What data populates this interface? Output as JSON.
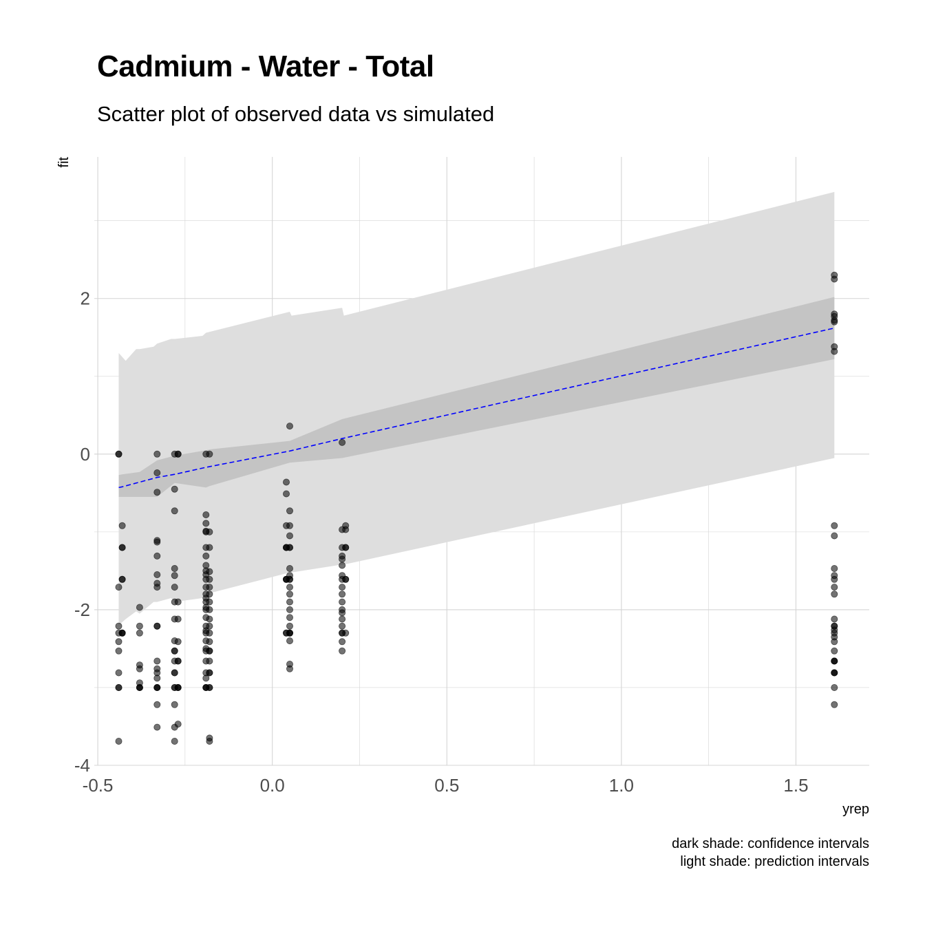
{
  "chart_data": {
    "type": "scatter",
    "title": "Cadmium - Water - Total",
    "subtitle": "Scatter plot of observed data vs simulated",
    "xlabel": "yrep",
    "ylabel": "fit",
    "xlim": [
      -0.51,
      1.71
    ],
    "ylim": [
      -4.0,
      3.82
    ],
    "x_ticks": [
      -0.5,
      0.0,
      0.5,
      1.0,
      1.5
    ],
    "x_tick_labels": [
      "-0.5",
      "0.0",
      "0.5",
      "1.0",
      "1.5"
    ],
    "y_ticks": [
      -4,
      -2,
      0,
      2
    ],
    "y_tick_labels": [
      "-4",
      "-2",
      "0",
      "2"
    ],
    "grid": true,
    "caption": [
      "dark shade: confidence intervals",
      "light shade: prediction intervals"
    ],
    "colors": {
      "fit_line": "#0000ff",
      "confidence_band": "#c4c4c4",
      "prediction_band": "#dedede",
      "points": "#000000",
      "grid": "#d4d4d4"
    },
    "fit_line": {
      "x": [
        -0.44,
        -0.43,
        -0.38,
        -0.33,
        -0.28,
        -0.19,
        0.05,
        0.2,
        1.61
      ],
      "y": [
        -0.43,
        -0.42,
        -0.36,
        -0.3,
        -0.26,
        -0.17,
        0.04,
        0.2,
        1.62
      ]
    },
    "confidence_band": {
      "x": [
        -0.44,
        -0.43,
        -0.38,
        -0.33,
        -0.28,
        -0.19,
        -0.18,
        0.05,
        0.2,
        1.61
      ],
      "upper": [
        -0.27,
        -0.26,
        -0.23,
        -0.08,
        -0.02,
        0.05,
        0.06,
        0.17,
        0.45,
        2.02
      ],
      "lower": [
        -0.55,
        -0.55,
        -0.55,
        -0.55,
        -0.37,
        -0.43,
        -0.41,
        -0.11,
        -0.05,
        1.22
      ]
    },
    "prediction_band": {
      "x": [
        -0.44,
        -0.42,
        -0.39,
        -0.38,
        -0.34,
        -0.33,
        -0.29,
        -0.28,
        -0.2,
        -0.19,
        0.05,
        0.055,
        0.2,
        0.205,
        1.61
      ],
      "upper": [
        1.3,
        1.2,
        1.35,
        1.35,
        1.38,
        1.42,
        1.48,
        1.48,
        1.52,
        1.56,
        1.83,
        1.78,
        1.88,
        1.78,
        3.37
      ],
      "lower": [
        -2.2,
        -2.12,
        -2.02,
        -2.05,
        -1.9,
        -1.9,
        -1.85,
        -1.9,
        -1.85,
        -1.8,
        -1.52,
        -1.52,
        -1.42,
        -1.42,
        -0.05
      ]
    },
    "points": {
      "x": [
        -0.44,
        -0.44,
        -0.44,
        -0.44,
        -0.44,
        -0.44,
        -0.44,
        -0.44,
        -0.44,
        -0.44,
        -0.44,
        -0.43,
        -0.43,
        -0.43,
        -0.43,
        -0.43,
        -0.43,
        -0.43,
        -0.43,
        -0.38,
        -0.38,
        -0.38,
        -0.38,
        -0.38,
        -0.38,
        -0.38,
        -0.38,
        -0.38,
        -0.33,
        -0.33,
        -0.33,
        -0.33,
        -0.33,
        -0.33,
        -0.33,
        -0.33,
        -0.33,
        -0.33,
        -0.33,
        -0.33,
        -0.33,
        -0.33,
        -0.33,
        -0.33,
        -0.33,
        -0.33,
        -0.33,
        -0.33,
        -0.28,
        -0.28,
        -0.28,
        -0.28,
        -0.28,
        -0.28,
        -0.28,
        -0.28,
        -0.28,
        -0.28,
        -0.28,
        -0.28,
        -0.28,
        -0.28,
        -0.28,
        -0.28,
        -0.28,
        -0.28,
        -0.28,
        -0.27,
        -0.27,
        -0.27,
        -0.27,
        -0.27,
        -0.27,
        -0.27,
        -0.27,
        -0.27,
        -0.27,
        -0.27,
        -0.19,
        -0.19,
        -0.19,
        -0.19,
        -0.19,
        -0.19,
        -0.19,
        -0.19,
        -0.19,
        -0.19,
        -0.19,
        -0.19,
        -0.19,
        -0.19,
        -0.19,
        -0.19,
        -0.19,
        -0.19,
        -0.19,
        -0.19,
        -0.19,
        -0.19,
        -0.19,
        -0.19,
        -0.19,
        -0.19,
        -0.19,
        -0.19,
        -0.19,
        -0.19,
        -0.18,
        -0.18,
        -0.18,
        -0.18,
        -0.18,
        -0.18,
        -0.18,
        -0.18,
        -0.18,
        -0.18,
        -0.18,
        -0.18,
        -0.18,
        -0.18,
        -0.18,
        -0.18,
        -0.18,
        -0.18,
        -0.18,
        -0.18,
        -0.18,
        -0.18,
        0.04,
        0.04,
        0.04,
        0.04,
        0.04,
        0.04,
        0.04,
        0.04,
        0.04,
        0.04,
        0.04,
        0.05,
        0.05,
        0.05,
        0.05,
        0.05,
        0.05,
        0.05,
        0.05,
        0.05,
        0.05,
        0.05,
        0.05,
        0.05,
        0.05,
        0.05,
        0.05,
        0.05,
        0.05,
        0.05,
        0.05,
        0.05,
        0.05,
        0.2,
        0.2,
        0.2,
        0.2,
        0.2,
        0.2,
        0.2,
        0.2,
        0.2,
        0.2,
        0.2,
        0.2,
        0.2,
        0.2,
        0.2,
        0.2,
        0.2,
        0.2,
        0.2,
        0.21,
        0.21,
        0.21,
        0.21,
        0.21,
        0.21,
        0.21,
        1.61,
        1.61,
        1.61,
        1.61,
        1.61,
        1.61,
        1.61,
        1.61,
        1.61,
        1.61,
        1.61,
        1.61,
        1.61,
        1.61,
        1.61,
        1.61,
        1.61,
        1.61,
        1.61,
        1.61,
        1.61,
        1.61,
        1.61,
        1.61,
        1.61,
        1.61,
        1.61,
        1.61,
        1.61,
        1.61,
        1.61
      ],
      "y": [
        0.0,
        0.0,
        -1.71,
        -2.21,
        -2.3,
        -2.41,
        -2.53,
        -2.81,
        -3.0,
        -3.0,
        -3.69,
        -0.92,
        -1.2,
        -1.2,
        -1.61,
        -1.61,
        -2.3,
        -2.3,
        -2.3,
        -1.97,
        -2.21,
        -2.3,
        -2.71,
        -2.76,
        -2.94,
        -3.0,
        -3.0,
        -3.0,
        0.0,
        -0.24,
        -0.49,
        -1.11,
        -1.13,
        -1.31,
        -1.55,
        -1.71,
        -1.66,
        -2.21,
        -2.21,
        -2.66,
        -2.76,
        -2.81,
        -2.88,
        -3.0,
        -3.0,
        -3.0,
        -3.22,
        -3.51,
        0.0,
        -0.45,
        -0.73,
        -1.47,
        -1.56,
        -1.71,
        -1.9,
        -2.12,
        -2.4,
        -2.53,
        -2.53,
        -2.66,
        -2.81,
        -2.81,
        -3.0,
        -3.0,
        -3.22,
        -3.51,
        -3.69,
        0.0,
        0.0,
        -1.9,
        -2.12,
        -2.41,
        -2.66,
        -2.66,
        -3.0,
        -3.0,
        -3.0,
        -3.47,
        0.0,
        -0.78,
        -0.89,
        -1.0,
        -1.2,
        -1.31,
        -1.43,
        -1.5,
        -1.61,
        -1.71,
        -1.8,
        -1.9,
        -2.0,
        -2.1,
        -2.21,
        -2.3,
        -2.4,
        -2.53,
        -2.66,
        -2.81,
        -2.88,
        -3.0,
        -3.0,
        -3.0,
        -0.99,
        -1.55,
        -1.85,
        -2.27,
        -2.5,
        -1.97,
        0.0,
        -1.0,
        -1.2,
        -1.51,
        -1.61,
        -1.71,
        -1.8,
        -1.9,
        -2.0,
        -2.12,
        -2.21,
        -2.3,
        -2.41,
        -2.53,
        -2.53,
        -2.66,
        -2.81,
        -2.81,
        -3.0,
        -3.0,
        -3.65,
        -3.69,
        -0.36,
        -0.51,
        -0.92,
        -1.2,
        -1.2,
        -1.61,
        -1.61,
        -2.3,
        -2.3,
        -1.2,
        -1.61,
        0.36,
        -0.73,
        -0.92,
        -1.05,
        -1.2,
        -1.47,
        -1.56,
        -1.61,
        -1.71,
        -1.8,
        -1.9,
        -2.0,
        -2.1,
        -2.21,
        -2.3,
        -2.4,
        -2.3,
        -2.7,
        -2.76,
        -1.2,
        -1.61,
        -2.3,
        0.15,
        -0.97,
        -1.2,
        -1.31,
        -1.35,
        -1.43,
        -1.56,
        -1.71,
        -1.8,
        -1.9,
        -2.0,
        -2.04,
        -2.12,
        -2.21,
        -2.3,
        -2.41,
        -2.53,
        -1.61,
        -2.3,
        -0.92,
        -0.97,
        -1.2,
        -1.2,
        -1.61,
        -1.61,
        -2.3,
        2.3,
        2.25,
        1.8,
        1.77,
        1.72,
        1.7,
        1.38,
        1.32,
        -0.92,
        -1.05,
        -1.47,
        -1.56,
        -1.61,
        -1.8,
        -2.12,
        -2.21,
        -2.26,
        -2.3,
        -2.35,
        -2.53,
        -2.66,
        -2.66,
        -2.66,
        -2.81,
        -2.81,
        -2.81,
        -3.0,
        -3.22,
        -2.41,
        -2.21,
        -1.71
      ]
    }
  }
}
